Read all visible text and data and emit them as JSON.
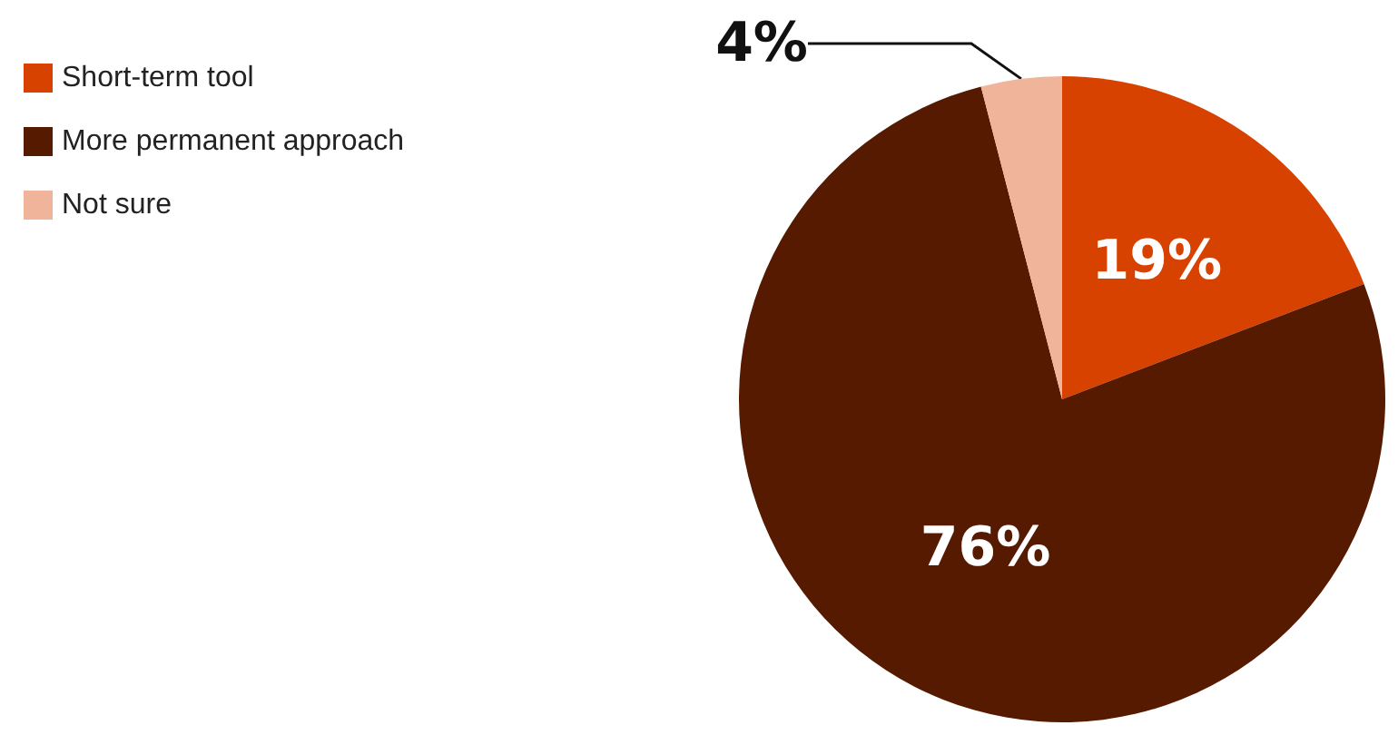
{
  "chart_data": {
    "type": "pie",
    "categories": [
      "Short-term tool",
      "More permanent approach",
      "Not sure"
    ],
    "values": [
      19,
      76,
      4
    ],
    "colors": [
      "#d84200",
      "#561a00",
      "#f0b49a"
    ],
    "value_labels": [
      "19%",
      "76%",
      "4%"
    ],
    "legend": "top left"
  }
}
